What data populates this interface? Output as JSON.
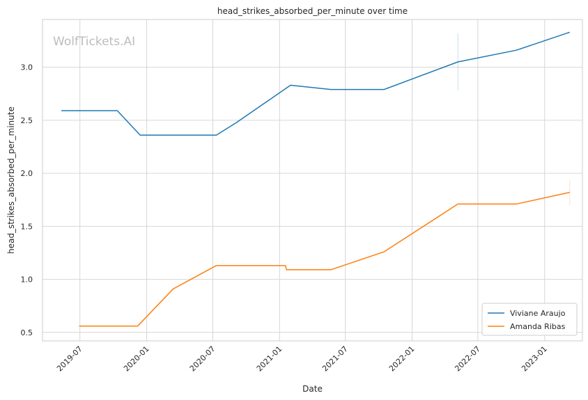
{
  "chart_data": {
    "type": "line",
    "title": "head_strikes_absorbed_per_minute over time",
    "xlabel": "Date",
    "ylabel": "head_strikes_absorbed_per_minute",
    "watermark": "WolfTickets.AI",
    "xlim": [
      "2019-03-20",
      "2023-04-15"
    ],
    "ylim": [
      0.42,
      3.45
    ],
    "x_ticks": [
      "2019-07-01",
      "2020-01-01",
      "2020-07-01",
      "2021-01-01",
      "2021-07-01",
      "2022-01-01",
      "2022-07-01",
      "2023-01-01"
    ],
    "x_tick_labels": [
      "2019-07",
      "2020-01",
      "2020-07",
      "2021-01",
      "2021-07",
      "2022-01",
      "2022-07",
      "2023-01"
    ],
    "y_ticks": [
      0.5,
      1.0,
      1.5,
      2.0,
      2.5,
      3.0
    ],
    "y_tick_labels": [
      "0.5",
      "1.0",
      "1.5",
      "2.0",
      "2.5",
      "3.0"
    ],
    "grid": true,
    "legend_position": "bottom-right",
    "series": [
      {
        "name": "Viviane Araujo",
        "color": "#1f77b4",
        "x": [
          "2019-05-11",
          "2019-10-12",
          "2019-12-14",
          "2020-07-11",
          "2020-09-05",
          "2021-01-31",
          "2021-05-22",
          "2021-10-16",
          "2022-05-07",
          "2022-10-15",
          "2023-03-11"
        ],
        "y": [
          2.59,
          2.59,
          2.36,
          2.36,
          2.48,
          2.83,
          2.79,
          2.79,
          3.05,
          3.16,
          3.33
        ],
        "error_bar": {
          "x": "2022-05-07",
          "low": 2.78,
          "high": 3.32
        }
      },
      {
        "name": "Amanda Ribas",
        "color": "#ff7f0e",
        "x": [
          "2019-06-29",
          "2019-12-07",
          "2020-03-14",
          "2020-07-11",
          "2021-01-17",
          "2021-01-20",
          "2021-05-22",
          "2021-10-16",
          "2022-05-07",
          "2022-10-15",
          "2023-03-11"
        ],
        "y": [
          0.56,
          0.56,
          0.91,
          1.13,
          1.13,
          1.09,
          1.09,
          1.26,
          1.71,
          1.71,
          1.82
        ],
        "error_bar": {
          "x": "2023-03-11",
          "low": 1.7,
          "high": 1.93
        }
      }
    ]
  }
}
